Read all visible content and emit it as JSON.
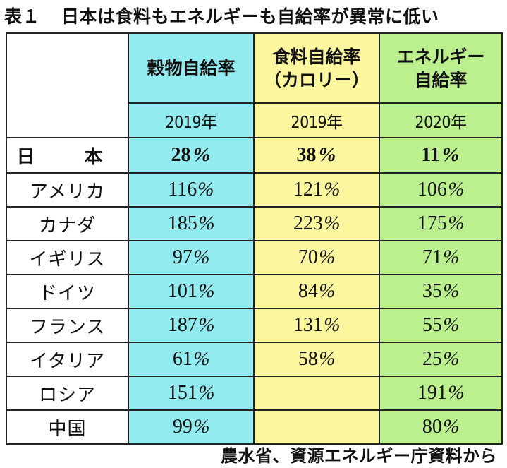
{
  "title": {
    "label": "表１",
    "text": "日本は食料もエネルギーも自給率が異常に低い"
  },
  "columns": [
    {
      "name": "穀物自給率",
      "year": "2019年",
      "color": "#92ebee"
    },
    {
      "name": "食料自給率（カロリー）",
      "year": "2019年",
      "color": "#fcf79f"
    },
    {
      "name": "エネルギー自給率",
      "year": "2020年",
      "color": "#bcf08f"
    }
  ],
  "header_lines": [
    [
      "穀物自給率"
    ],
    [
      "食料自給率",
      "（カロリー）"
    ],
    [
      "エネルギー",
      "自給率"
    ]
  ],
  "rows": [
    {
      "country": "日本",
      "display": "日　本",
      "grain": "28",
      "food": "38",
      "energy": "11"
    },
    {
      "country": "アメリカ",
      "grain": "116",
      "food": "121",
      "energy": "106"
    },
    {
      "country": "カナダ",
      "grain": "185",
      "food": "223",
      "energy": "175"
    },
    {
      "country": "イギリス",
      "grain": "97",
      "food": "70",
      "energy": "71"
    },
    {
      "country": "ドイツ",
      "grain": "101",
      "food": "84",
      "energy": "35"
    },
    {
      "country": "フランス",
      "grain": "187",
      "food": "131",
      "energy": "55"
    },
    {
      "country": "イタリア",
      "grain": "61",
      "food": "58",
      "energy": "25"
    },
    {
      "country": "ロシア",
      "grain": "151",
      "food": "",
      "energy": "191"
    },
    {
      "country": "中国",
      "grain": "99",
      "food": "",
      "energy": "80"
    }
  ],
  "unit": "%",
  "source": "農水省、資源エネルギー庁資料から"
}
